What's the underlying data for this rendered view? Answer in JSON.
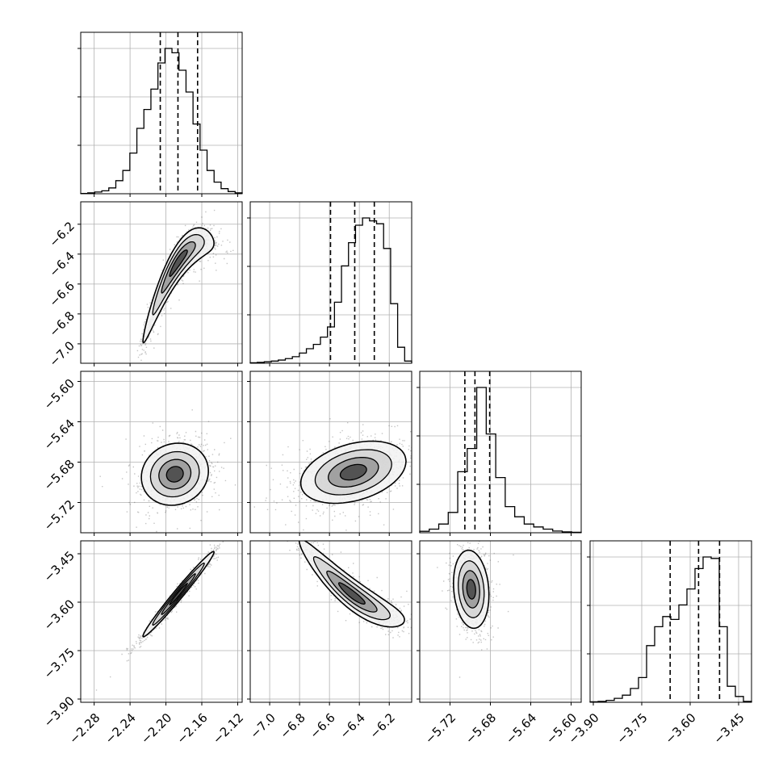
{
  "chart_data": {
    "type": "corner",
    "params": [
      {
        "range": [
          -2.295,
          -2.115
        ],
        "ticks": [
          "-2.28",
          "-2.24",
          "-2.20",
          "-2.16",
          "-2.12"
        ],
        "tick_values": [
          -2.28,
          -2.24,
          -2.2,
          -2.16,
          -2.12
        ],
        "quantiles": [
          -2.2063,
          -2.1866,
          -2.1647
        ]
      },
      {
        "range": [
          -7.13,
          -6.05
        ],
        "ticks": [
          "-7.0",
          "-6.8",
          "-6.6",
          "-6.4",
          "-6.2"
        ],
        "tick_values": [
          -7.0,
          -6.8,
          -6.6,
          -6.4,
          -6.2
        ],
        "quantiles": [
          -6.593,
          -6.431,
          -6.3
        ]
      },
      {
        "range": [
          -5.75,
          -5.59
        ],
        "ticks": [
          "-5.72",
          "-5.68",
          "-5.64",
          "-5.60"
        ],
        "tick_values": [
          -5.72,
          -5.68,
          -5.64,
          -5.6
        ],
        "quantiles": [
          -5.7053,
          -5.6953,
          -5.6807
        ]
      },
      {
        "range": [
          -3.91,
          -3.41
        ],
        "ticks": [
          "-3.90",
          "-3.75",
          "-3.60",
          "-3.45"
        ],
        "tick_values": [
          -3.9,
          -3.75,
          -3.6,
          -3.45
        ],
        "quantiles": [
          -3.662,
          -3.574,
          -3.509
        ]
      }
    ],
    "histograms": [
      [
        0.2,
        0.6,
        1.2,
        2,
        4,
        9,
        16,
        28,
        45,
        58,
        72,
        90,
        100,
        97,
        85,
        70,
        48,
        30,
        16,
        8,
        3.5,
        1.5,
        0.6
      ],
      [
        0.3,
        0.6,
        1,
        1.5,
        2.2,
        3.2,
        4.5,
        7,
        10,
        13,
        18,
        25,
        42,
        67,
        83,
        95,
        100,
        98,
        96,
        79,
        41,
        11,
        1.5
      ],
      [
        1,
        2.5,
        6,
        14,
        42,
        58,
        100,
        68,
        38,
        18,
        11,
        6,
        4,
        2.5,
        1.2,
        0.6,
        0.3
      ],
      [
        0.3,
        0.6,
        1.3,
        2.7,
        4.9,
        9.5,
        17,
        39,
        52,
        59,
        57,
        67,
        78,
        92,
        100,
        99,
        52,
        11,
        4,
        0.6
      ]
    ],
    "pairs": [
      {
        "row": 1,
        "col": 0,
        "mean": [
          -2.186,
          -6.45
        ],
        "sd": [
          0.018,
          0.16
        ],
        "rho": 0.93,
        "curv": 2.2
      },
      {
        "row": 2,
        "col": 0,
        "mean": [
          -2.19,
          -5.692
        ],
        "sd": [
          0.017,
          0.014
        ],
        "rho": 0.1
      },
      {
        "row": 2,
        "col": 1,
        "mean": [
          -6.44,
          -5.69
        ],
        "sd": [
          0.16,
          0.014
        ],
        "rho": 0.35
      },
      {
        "row": 3,
        "col": 0,
        "mean": [
          -2.186,
          -3.575
        ],
        "sd": [
          0.018,
          0.06
        ],
        "rho": 0.985
      },
      {
        "row": 3,
        "col": 1,
        "mean": [
          -6.45,
          -3.575
        ],
        "sd": [
          0.16,
          0.06
        ],
        "rho": -0.92,
        "curv": -1.2
      },
      {
        "row": 3,
        "col": 2,
        "mean": [
          -5.699,
          -3.56
        ],
        "sd": [
          0.008,
          0.055
        ],
        "rho": -0.15
      }
    ],
    "grid": true,
    "contour_levels": [
      "0.5σ",
      "1σ",
      "1.5σ",
      "2σ"
    ]
  }
}
